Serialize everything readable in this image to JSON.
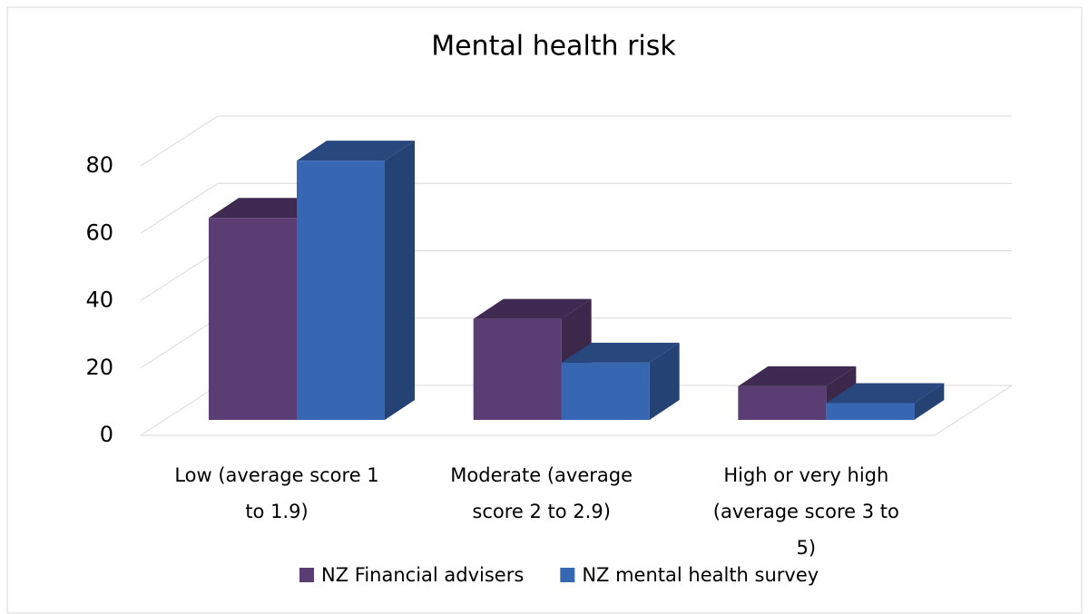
{
  "chart_data": {
    "type": "bar3d",
    "title": "Mental health risk",
    "categories": [
      "Low (average score 1 to 1.9)",
      "Moderate (average score 2 to 2.9)",
      "High or very high (average score 3 to 5)"
    ],
    "series": [
      {
        "name": "NZ Financial advisers",
        "color": "#5a3d73",
        "values": [
          60,
          30,
          10
        ]
      },
      {
        "name": "NZ mental health survey",
        "color": "#3766b2",
        "values": [
          77,
          17,
          5
        ]
      }
    ],
    "ylim": [
      0,
      80
    ],
    "yticks": [
      0,
      20,
      40,
      60,
      80
    ],
    "grid": true,
    "legend": "bottom"
  }
}
